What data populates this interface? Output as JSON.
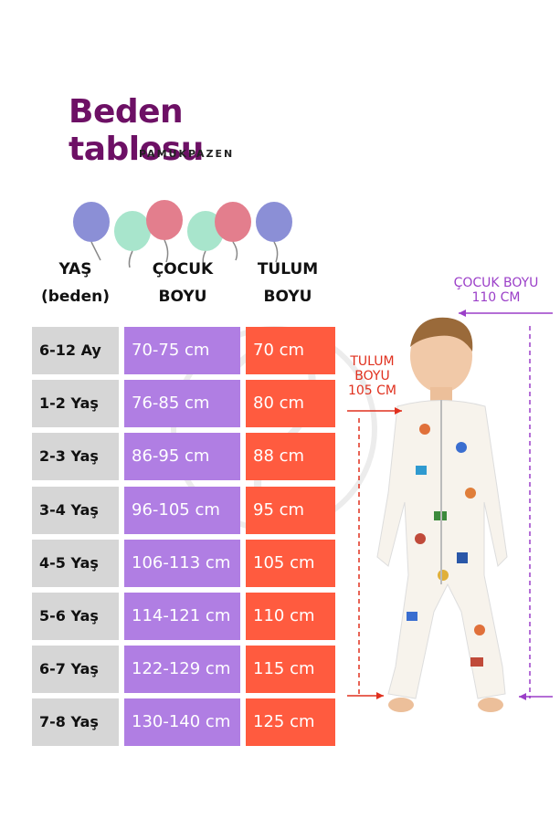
{
  "title": "Beden tablosu",
  "brand": "PAMUKPAZEN",
  "headers": {
    "age_line1": "YAŞ",
    "age_line2": "(beden)",
    "child_line1": "ÇOCUK",
    "child_line2": "BOYU",
    "suit_line1": "TULUM",
    "suit_line2": "BOYU"
  },
  "rows": [
    {
      "age": "6-12 Ay",
      "child": "70-75 cm",
      "suit": "70 cm"
    },
    {
      "age": "1-2 Yaş",
      "child": "76-85 cm",
      "suit": "80 cm"
    },
    {
      "age": "2-3 Yaş",
      "child": "86-95 cm",
      "suit": "88 cm"
    },
    {
      "age": "3-4 Yaş",
      "child": "96-105 cm",
      "suit": "95 cm"
    },
    {
      "age": "4-5 Yaş",
      "child": "106-113 cm",
      "suit": "105 cm"
    },
    {
      "age": "5-6 Yaş",
      "child": "114-121 cm",
      "suit": "110 cm"
    },
    {
      "age": "6-7 Yaş",
      "child": "122-129 cm",
      "suit": "115 cm"
    },
    {
      "age": "7-8 Yaş",
      "child": "130-140 cm",
      "suit": "125 cm"
    }
  ],
  "measures": {
    "child_label_1": "ÇOCUK BOYU",
    "child_label_2": "110 CM",
    "suit_label_1": "TULUM",
    "suit_label_2": "BOYU",
    "suit_label_3": "105 CM"
  },
  "colors": {
    "title": "#6d1065",
    "age_cell": "#d6d6d6",
    "child_cell": "#b07ee3",
    "suit_cell": "#ff5b3f",
    "child_measure": "#9b3fc8",
    "suit_measure": "#e0301e"
  }
}
